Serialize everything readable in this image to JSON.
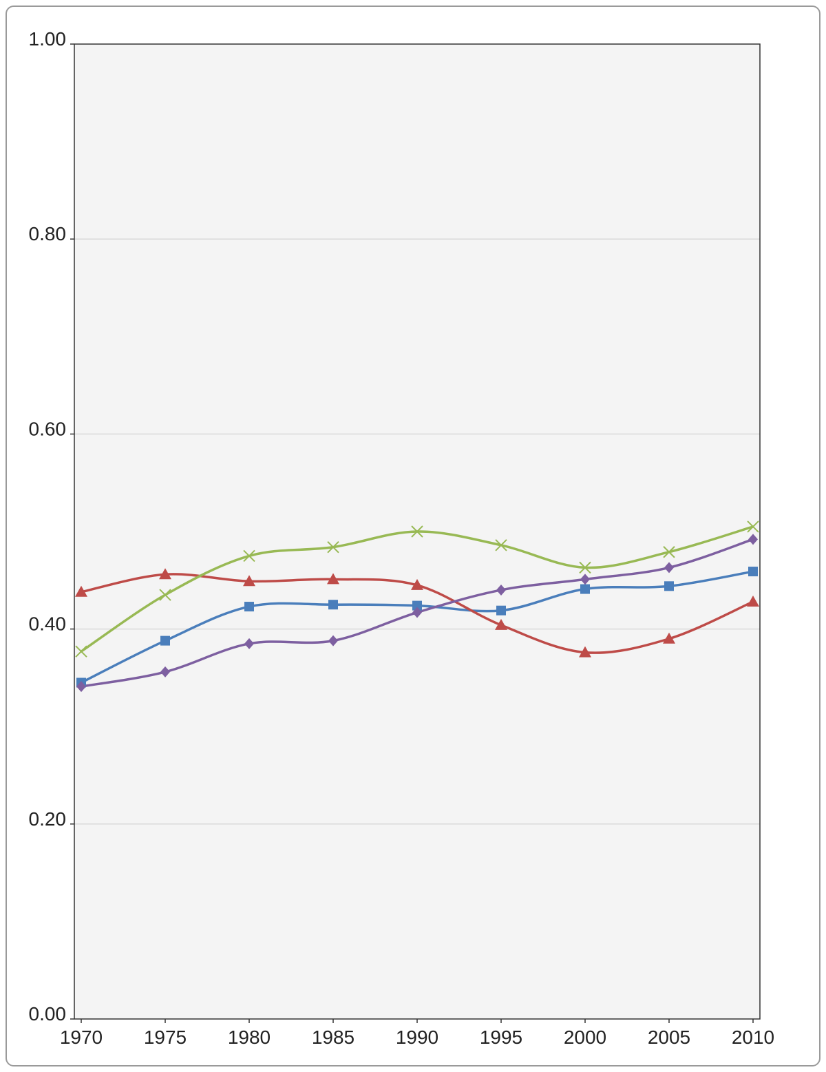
{
  "chart_data": {
    "type": "line",
    "title": "",
    "xlabel": "",
    "ylabel": "",
    "x": [
      1970,
      1975,
      1980,
      1985,
      1990,
      1995,
      2000,
      2005,
      2010
    ],
    "x_tick_labels": [
      "1970",
      "1975",
      "1980",
      "1985",
      "1990",
      "1995",
      "2000",
      "2005",
      "2010"
    ],
    "ylim": [
      0,
      1
    ],
    "y_ticks": [
      0,
      0.2,
      0.4,
      0.6,
      0.8,
      1.0
    ],
    "y_tick_labels": [
      "0.00",
      "0.20",
      "0.40",
      "0.60",
      "0.80",
      "1.00"
    ],
    "grid": "horizontal",
    "smooth": true,
    "legend": "none",
    "plot_background": "#f4f4f4",
    "series": [
      {
        "color": "#4a7ebb",
        "marker": "square",
        "values": [
          0.345,
          0.388,
          0.423,
          0.425,
          0.424,
          0.419,
          0.441,
          0.444,
          0.459
        ]
      },
      {
        "color": "#be4b48",
        "marker": "triangle",
        "values": [
          0.438,
          0.456,
          0.449,
          0.451,
          0.445,
          0.404,
          0.376,
          0.39,
          0.428
        ]
      },
      {
        "color": "#98b954",
        "marker": "x",
        "values": [
          0.377,
          0.435,
          0.475,
          0.484,
          0.5,
          0.486,
          0.463,
          0.479,
          0.505
        ]
      },
      {
        "color": "#7d5fa0",
        "marker": "diamond",
        "values": [
          0.341,
          0.356,
          0.385,
          0.388,
          0.417,
          0.44,
          0.451,
          0.463,
          0.492
        ]
      }
    ]
  }
}
